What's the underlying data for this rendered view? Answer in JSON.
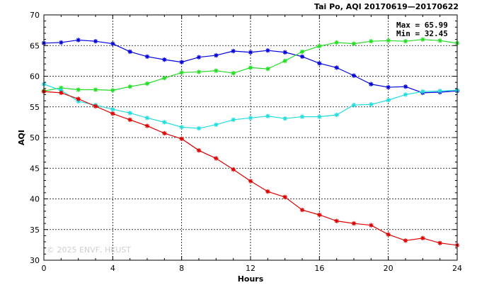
{
  "chart_data": {
    "type": "line",
    "title": "Tai Po, AQI 20170619—20170622",
    "xlabel": "Hours",
    "ylabel": "AQI",
    "xlim": [
      0,
      24
    ],
    "ylim": [
      30,
      70
    ],
    "xticks": [
      0,
      4,
      8,
      12,
      16,
      20,
      24
    ],
    "yticks": [
      30,
      35,
      40,
      45,
      50,
      55,
      60,
      65,
      70
    ],
    "grid": true,
    "stats": {
      "max": "Max = 65.99",
      "min": "Min = 32.45"
    },
    "watermark": "© 2025  ENVF, HKUST",
    "x": [
      0,
      1,
      2,
      3,
      4,
      5,
      6,
      7,
      8,
      9,
      10,
      11,
      12,
      13,
      14,
      15,
      16,
      17,
      18,
      19,
      20,
      21,
      22,
      23,
      24
    ],
    "series": [
      {
        "color": "#0000dd",
        "values": [
          65.4,
          65.5,
          65.9,
          65.7,
          65.3,
          64.0,
          63.2,
          62.7,
          62.3,
          63.1,
          63.4,
          64.1,
          63.9,
          64.2,
          63.9,
          63.2,
          62.1,
          61.4,
          60.1,
          58.7,
          58.2,
          58.3,
          57.3,
          57.4,
          57.6
        ]
      },
      {
        "color": "#22dd22",
        "values": [
          57.6,
          58.1,
          57.8,
          57.8,
          57.7,
          58.3,
          58.8,
          59.7,
          60.6,
          60.7,
          60.9,
          60.5,
          61.4,
          61.2,
          62.5,
          64.0,
          64.9,
          65.5,
          65.3,
          65.7,
          65.8,
          65.7,
          65.99,
          65.8,
          65.4
        ]
      },
      {
        "color": "#22dddd",
        "values": [
          58.7,
          57.7,
          55.9,
          55.3,
          54.6,
          54.0,
          53.2,
          52.5,
          51.7,
          51.5,
          52.1,
          52.9,
          53.2,
          53.5,
          53.1,
          53.4,
          53.4,
          53.7,
          55.3,
          55.4,
          56.1,
          57.0,
          57.5,
          57.6,
          57.7
        ]
      },
      {
        "color": "#dd0000",
        "values": [
          57.5,
          57.3,
          56.3,
          55.1,
          53.9,
          52.9,
          51.9,
          50.7,
          49.8,
          47.9,
          46.6,
          44.8,
          42.9,
          41.2,
          40.3,
          38.2,
          37.4,
          36.4,
          36.0,
          35.7,
          34.2,
          33.2,
          33.6,
          32.8,
          32.45
        ]
      }
    ]
  }
}
